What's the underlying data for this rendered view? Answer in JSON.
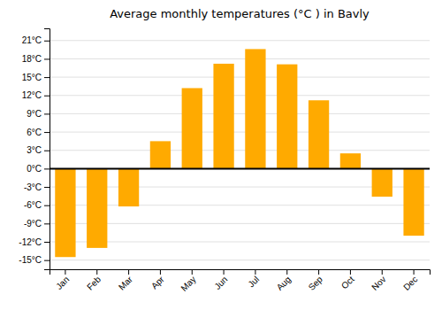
{
  "chart_data": {
    "type": "bar",
    "title": "Average monthly temperatures (°C ) in Bavly",
    "categories": [
      "Jan",
      "Feb",
      "Mar",
      "Apr",
      "May",
      "Jun",
      "Jul",
      "Aug",
      "Sep",
      "Oct",
      "Nov",
      "Dec"
    ],
    "values": [
      -14.5,
      -13.0,
      -6.2,
      4.5,
      13.2,
      17.2,
      19.6,
      17.1,
      11.2,
      2.5,
      -4.6,
      -11.0
    ],
    "color": "#FFAA00",
    "ylim": [
      -16.5,
      23
    ],
    "yticks": [
      {
        "value": -15,
        "label": "-15°C"
      },
      {
        "value": -12,
        "label": "-12°C"
      },
      {
        "value": -9,
        "label": "-9°C"
      },
      {
        "value": -6,
        "label": "-6°C"
      },
      {
        "value": -3,
        "label": "-3°C"
      },
      {
        "value": 0,
        "label": "0°C"
      },
      {
        "value": 3,
        "label": "3°C"
      },
      {
        "value": 6,
        "label": "6°C"
      },
      {
        "value": 9,
        "label": "9°C"
      },
      {
        "value": 12,
        "label": "12°C"
      },
      {
        "value": 15,
        "label": "15°C"
      },
      {
        "value": 18,
        "label": "18°C"
      },
      {
        "value": 21,
        "label": "21°C"
      }
    ],
    "grid": true
  }
}
